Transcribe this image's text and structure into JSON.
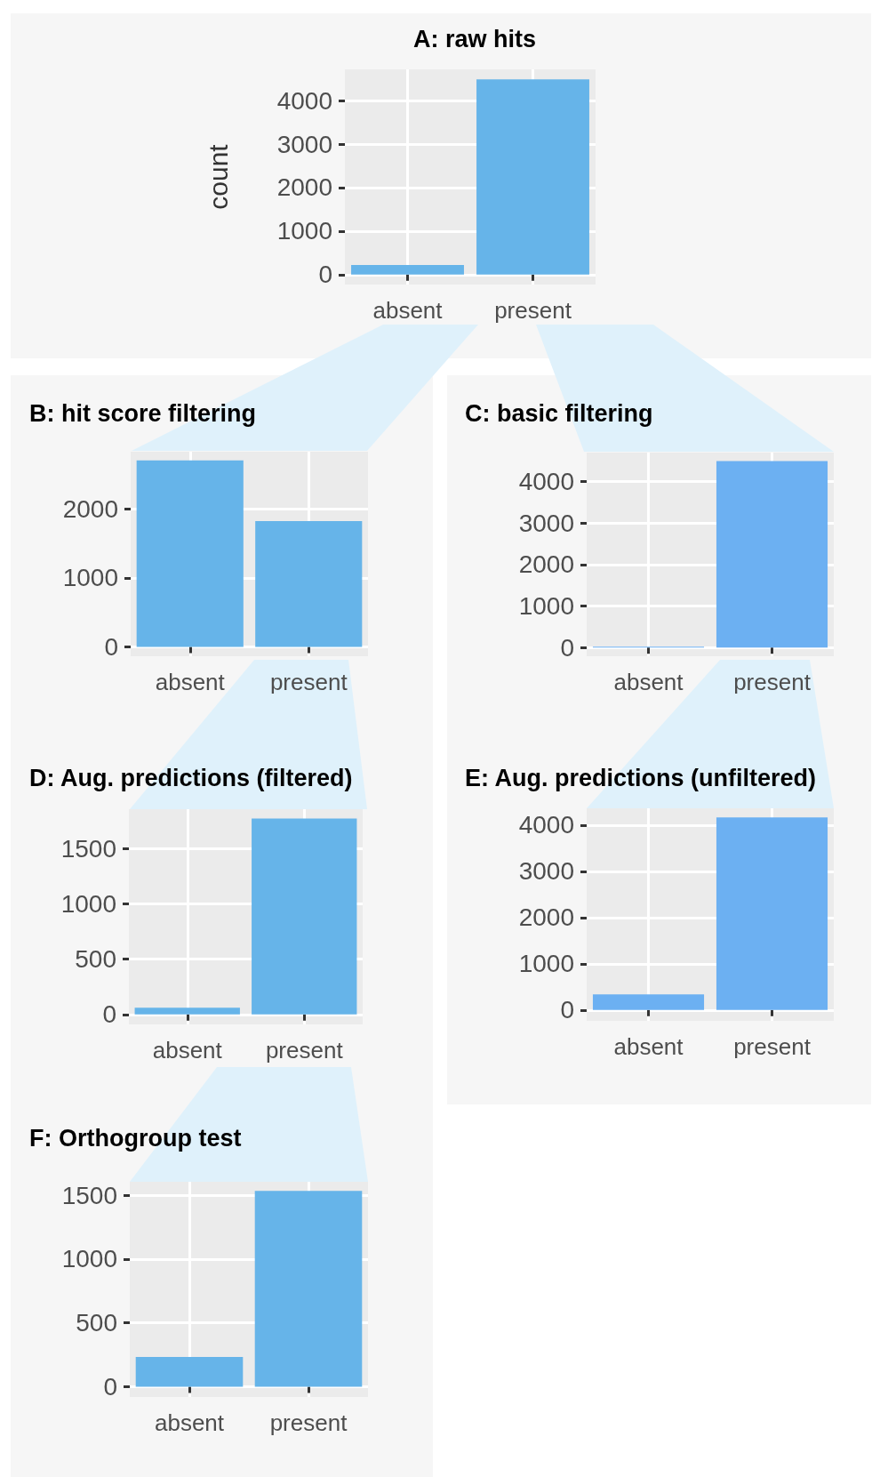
{
  "chart_data": [
    {
      "type": "bar",
      "title": "A: raw hits",
      "ylabel": "count",
      "categories": [
        "absent",
        "present"
      ],
      "values": [
        220,
        4490
      ],
      "color": "#66b4e9",
      "ylim": [
        -230,
        4720
      ],
      "yticks": [
        0,
        1000,
        2000,
        3000,
        4000
      ],
      "grid": true
    },
    {
      "type": "bar",
      "title": "B: hit score filtering",
      "categories": [
        "absent",
        "present"
      ],
      "values": [
        2700,
        1820
      ],
      "color": "#66b4e9",
      "ylim": [
        -135,
        2825
      ],
      "yticks": [
        0,
        1000,
        2000
      ],
      "grid": true
    },
    {
      "type": "bar",
      "title": "C: basic filtering",
      "categories": [
        "absent",
        "present"
      ],
      "values": [
        20,
        4490
      ],
      "color": "#6cb0f2",
      "ylim": [
        -210,
        4695
      ],
      "yticks": [
        0,
        1000,
        2000,
        3000,
        4000
      ],
      "grid": true
    },
    {
      "type": "bar",
      "title": "D: Aug. predictions (filtered)",
      "categories": [
        "absent",
        "present"
      ],
      "values": [
        60,
        1770
      ],
      "color": "#66b4e9",
      "ylim": [
        -90,
        1855
      ],
      "yticks": [
        0,
        500,
        1000,
        1500
      ],
      "grid": true
    },
    {
      "type": "bar",
      "title": "E: Aug. predictions (unfiltered)",
      "categories": [
        "absent",
        "present"
      ],
      "values": [
        340,
        4170
      ],
      "color": "#6cb0f2",
      "ylim": [
        -235,
        4365
      ],
      "yticks": [
        0,
        1000,
        2000,
        3000,
        4000
      ],
      "grid": true
    },
    {
      "type": "bar",
      "title": "F: Orthogroup test",
      "categories": [
        "absent",
        "present"
      ],
      "values": [
        233,
        1533
      ],
      "color": "#66b4e9",
      "ylim": [
        -80,
        1605
      ],
      "yticks": [
        0,
        500,
        1000,
        1500
      ],
      "grid": true
    }
  ]
}
